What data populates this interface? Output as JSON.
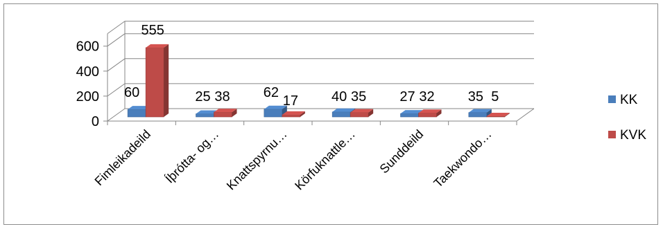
{
  "chart_data": {
    "type": "bar",
    "categories": [
      "Fimleikadeild",
      "Íþrótta- og…",
      "Knattspyrnu…",
      "Körfuknattle…",
      "Sunddeild",
      "Taekwondo…"
    ],
    "series": [
      {
        "name": "KK",
        "values": [
          60,
          25,
          62,
          40,
          27,
          35
        ],
        "color": "#4a7ebb"
      },
      {
        "name": "KVK",
        "values": [
          555,
          38,
          17,
          35,
          32,
          5
        ],
        "color": "#be4b48"
      }
    ],
    "yticks": [
      0,
      200,
      400,
      600
    ],
    "ylim": [
      0,
      700
    ],
    "grid": true,
    "legend_position": "right",
    "style": "3d-clustered-bar"
  }
}
